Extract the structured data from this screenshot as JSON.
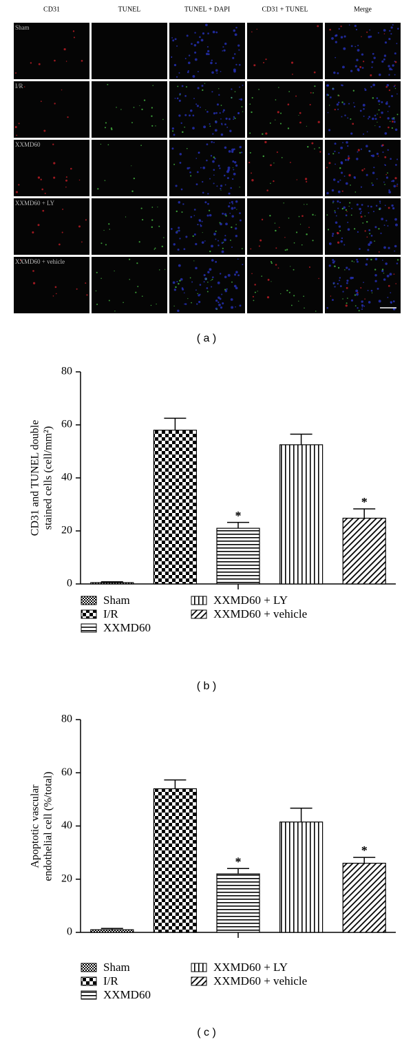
{
  "micrograph": {
    "columns": [
      "CD31",
      "TUNEL",
      "TUNEL + DAPI",
      "CD31 + TUNEL",
      "Merge"
    ],
    "rows": [
      "Sham",
      "I/R",
      "XXMD60",
      "XXMD60 + LY",
      "XXMD60 + vehicle"
    ],
    "caption": "( a )"
  },
  "chart_data": [
    {
      "type": "bar",
      "caption": "( b )",
      "y_label": "CD31 and TUNEL double stained cells (cell/mm²)",
      "categories": [
        "Sham",
        "I/R",
        "XXMD60",
        "XXMD60 + LY",
        "XXMD60 + vehicle"
      ],
      "values": [
        0.5,
        58,
        21,
        52.5,
        24.8
      ],
      "errors": [
        0.3,
        4.5,
        2.2,
        4,
        3.5
      ],
      "annotations": [
        null,
        null,
        "*",
        null,
        "*"
      ],
      "fills": [
        "dense-checker",
        "checker",
        "horizontal",
        "vertical",
        "diagonal"
      ],
      "ylim": [
        0,
        80
      ],
      "yticks": [
        0,
        20,
        40,
        60,
        80
      ]
    },
    {
      "type": "bar",
      "caption": "( c )",
      "y_label": "Apoptotic vascular endothelial cell (%/total)",
      "categories": [
        "Sham",
        "I/R",
        "XXMD60",
        "XXMD60 + LY",
        "XXMD60 + vehicle"
      ],
      "values": [
        1,
        54,
        22,
        41.5,
        26
      ],
      "errors": [
        0.5,
        3.3,
        2,
        5.2,
        2.2
      ],
      "annotations": [
        null,
        null,
        "*",
        null,
        "*"
      ],
      "fills": [
        "dense-checker",
        "checker",
        "horizontal",
        "vertical",
        "diagonal"
      ],
      "ylim": [
        0,
        80
      ],
      "yticks": [
        0,
        20,
        40,
        60,
        80
      ]
    }
  ]
}
